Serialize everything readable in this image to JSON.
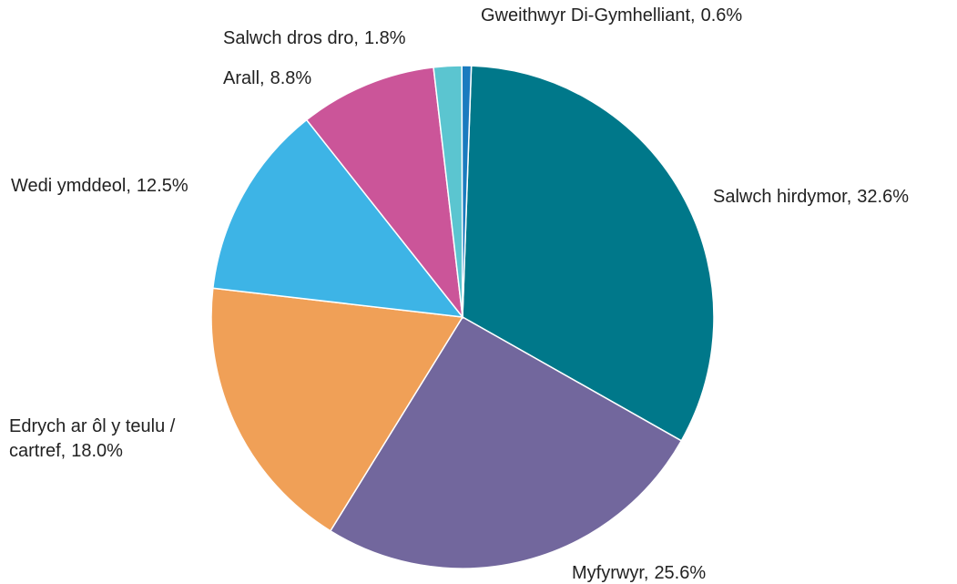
{
  "chart_data": {
    "type": "pie",
    "categories": [
      "Salwch hirdymor,",
      "Myfyrwyr,",
      "Edrych ar ôl y teulu / cartref,",
      "Wedi ymddeol,",
      "Arall,",
      "Salwch dros dro,",
      "Gweithwyr Di-Gymhelliant,"
    ],
    "values": [
      32.6,
      25.6,
      18.0,
      12.5,
      8.8,
      1.8,
      0.6
    ],
    "value_labels": [
      "32.6%",
      "25.6%",
      "18.0%",
      "12.5%",
      "8.8%",
      "1.8%",
      "0.6%"
    ],
    "colors": [
      "#00788a",
      "#72679d",
      "#f0a057",
      "#3db4e6",
      "#cb5599",
      "#5bc5d0",
      "#1a7bbf"
    ]
  }
}
